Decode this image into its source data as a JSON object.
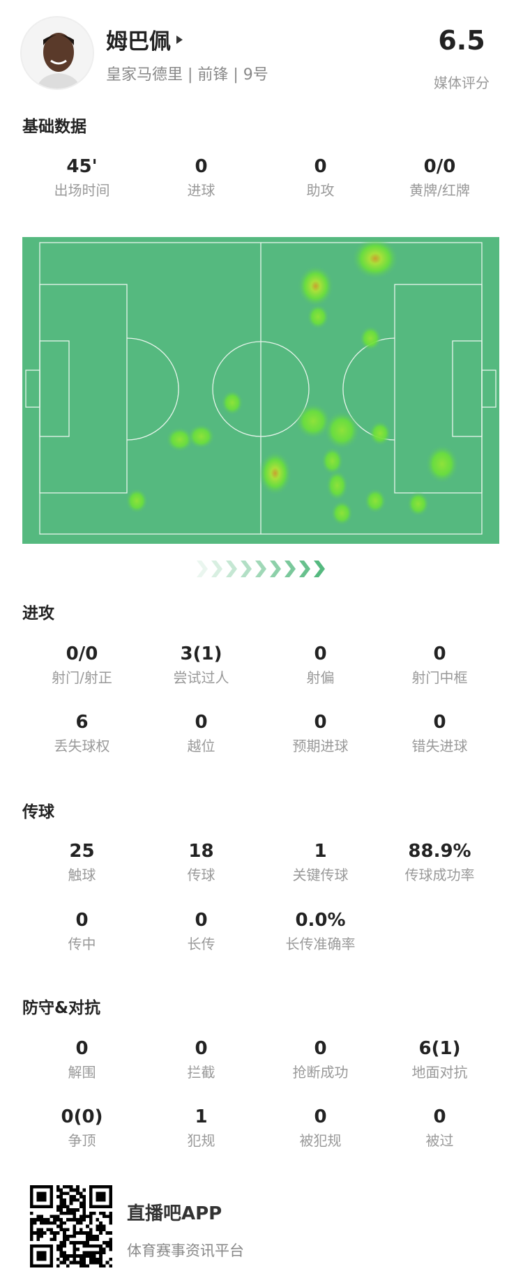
{
  "player": {
    "name": "姆巴佩",
    "subtitle": "皇家马德里 | 前锋 | 9号",
    "rating": "6.5",
    "rating_label": "媒体评分"
  },
  "basic": {
    "title": "基础数据",
    "stats": [
      {
        "value": "45'",
        "label": "出场时间"
      },
      {
        "value": "0",
        "label": "进球"
      },
      {
        "value": "0",
        "label": "助攻"
      },
      {
        "value": "0/0",
        "label": "黄牌/红牌"
      }
    ]
  },
  "heatmap": {
    "pitch_color": "#55b97f",
    "line_color": "#e8f5ec",
    "attack_direction": "right"
  },
  "attack": {
    "title": "进攻",
    "stats": [
      {
        "value": "0/0",
        "label": "射门/射正"
      },
      {
        "value": "3(1)",
        "label": "尝试过人"
      },
      {
        "value": "0",
        "label": "射偏"
      },
      {
        "value": "0",
        "label": "射门中框"
      },
      {
        "value": "6",
        "label": "丢失球权"
      },
      {
        "value": "0",
        "label": "越位"
      },
      {
        "value": "0",
        "label": "预期进球"
      },
      {
        "value": "0",
        "label": "错失进球"
      }
    ]
  },
  "passing": {
    "title": "传球",
    "stats": [
      {
        "value": "25",
        "label": "触球"
      },
      {
        "value": "18",
        "label": "传球"
      },
      {
        "value": "1",
        "label": "关键传球"
      },
      {
        "value": "88.9%",
        "label": "传球成功率"
      },
      {
        "value": "0",
        "label": "传中"
      },
      {
        "value": "0",
        "label": "长传"
      },
      {
        "value": "0.0%",
        "label": "长传准确率"
      }
    ]
  },
  "defense": {
    "title": "防守&对抗",
    "stats": [
      {
        "value": "0",
        "label": "解围"
      },
      {
        "value": "0",
        "label": "拦截"
      },
      {
        "value": "0",
        "label": "抢断成功"
      },
      {
        "value": "6(1)",
        "label": "地面对抗"
      },
      {
        "value": "0(0)",
        "label": "争顶"
      },
      {
        "value": "1",
        "label": "犯规"
      },
      {
        "value": "0",
        "label": "被犯规"
      },
      {
        "value": "0",
        "label": "被过"
      }
    ]
  },
  "footer": {
    "app_name": "直播吧APP",
    "tagline": "体育赛事资讯平台",
    "qr_icon": "qr-code-icon"
  }
}
